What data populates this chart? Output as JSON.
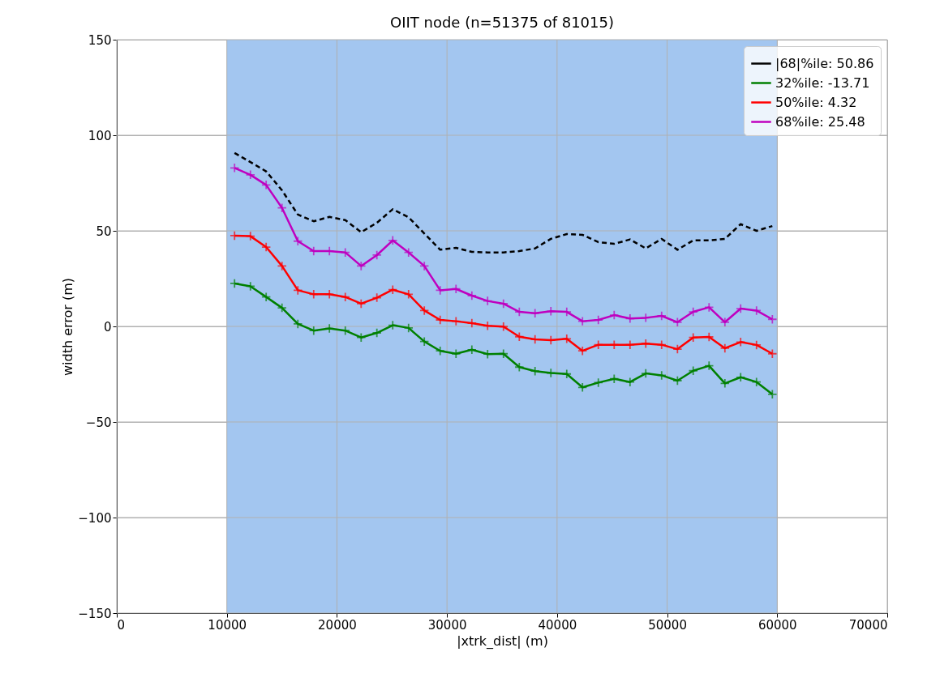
{
  "chart_data": {
    "type": "line",
    "title": "OIIT node (n=51375 of 81015)",
    "xlabel": "|xtrk_dist|  (m)",
    "ylabel": "width error (m)",
    "x": [
      10700,
      12140,
      13570,
      15010,
      16450,
      17890,
      19320,
      20760,
      22200,
      23630,
      25070,
      26510,
      27940,
      29380,
      30820,
      32260,
      33690,
      35130,
      36570,
      38000,
      39440,
      40880,
      42310,
      43750,
      45190,
      46630,
      48060,
      49500,
      50940,
      52370,
      53810,
      55250,
      56680,
      58120,
      59560
    ],
    "series": [
      {
        "name": "|68|%ile: 50.86",
        "color": "#000000",
        "line_style": "dashed",
        "marker": "none",
        "values": [
          90.7,
          86.0,
          81.1,
          71.2,
          58.5,
          55.0,
          57.3,
          55.6,
          49.3,
          54.2,
          61.3,
          57.1,
          48.6,
          40.1,
          41.1,
          39.0,
          38.7,
          38.7,
          39.4,
          40.8,
          45.8,
          48.3,
          47.9,
          44.1,
          43.2,
          45.5,
          40.8,
          45.8,
          40.1,
          45.0,
          45.0,
          45.8,
          53.5,
          50.0,
          52.5
        ]
      },
      {
        "name": "32%ile: -13.71",
        "color": "#008000",
        "line_style": "solid",
        "marker": "cross",
        "values": [
          22.5,
          21.0,
          15.4,
          9.7,
          1.3,
          -2.2,
          -1.1,
          -2.2,
          -5.8,
          -3.4,
          0.6,
          -0.8,
          -7.9,
          -12.8,
          -14.3,
          -12.2,
          -14.5,
          -14.3,
          -21.3,
          -23.4,
          -24.4,
          -24.9,
          -31.9,
          -29.4,
          -27.4,
          -29.1,
          -24.6,
          -25.6,
          -28.4,
          -23.2,
          -20.6,
          -29.8,
          -26.6,
          -29.1,
          -35.5
        ]
      },
      {
        "name": "50%ile: 4.32",
        "color": "#ff0000",
        "line_style": "solid",
        "marker": "cross",
        "values": [
          47.5,
          47.2,
          41.5,
          31.6,
          18.9,
          16.8,
          16.8,
          15.4,
          11.9,
          15.0,
          19.2,
          16.8,
          8.3,
          3.4,
          2.7,
          1.7,
          0.3,
          -0.1,
          -5.4,
          -6.8,
          -7.2,
          -6.5,
          -12.8,
          -9.6,
          -9.6,
          -9.6,
          -9.0,
          -9.6,
          -11.9,
          -5.8,
          -5.5,
          -11.4,
          -8.2,
          -9.7,
          -14.3
        ]
      },
      {
        "name": "68%ile: 25.48",
        "color": "#bf00bf",
        "line_style": "solid",
        "marker": "cross",
        "values": [
          82.9,
          79.3,
          74.0,
          62.0,
          44.6,
          39.4,
          39.4,
          38.7,
          31.6,
          37.3,
          45.0,
          38.7,
          31.6,
          18.9,
          19.6,
          16.1,
          13.3,
          11.9,
          7.6,
          6.9,
          7.9,
          7.6,
          2.7,
          3.4,
          5.9,
          4.1,
          4.5,
          5.5,
          2.2,
          7.6,
          10.0,
          2.2,
          9.3,
          8.3,
          3.7
        ]
      }
    ],
    "bands": [
      {
        "axis": "x",
        "from": 10000,
        "to": 60000,
        "color": "#a3c6f0"
      }
    ],
    "xlim": [
      0,
      70000
    ],
    "xticks": [
      0,
      10000,
      20000,
      30000,
      40000,
      50000,
      60000,
      70000
    ],
    "ylim": [
      -150,
      150
    ],
    "yticks": [
      -150,
      -100,
      -50,
      0,
      50,
      100,
      150
    ],
    "grid": true,
    "legend": "top right"
  }
}
